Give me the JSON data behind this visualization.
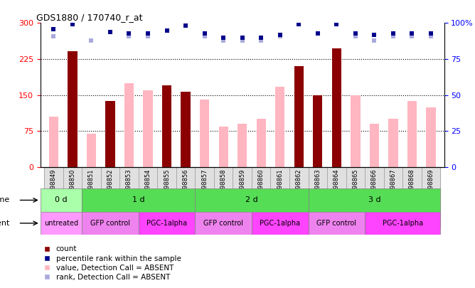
{
  "title": "GDS1880 / 170740_r_at",
  "samples": [
    "GSM98849",
    "GSM98850",
    "GSM98851",
    "GSM98852",
    "GSM98853",
    "GSM98854",
    "GSM98855",
    "GSM98856",
    "GSM98857",
    "GSM98858",
    "GSM98859",
    "GSM98860",
    "GSM98861",
    "GSM98862",
    "GSM98863",
    "GSM98864",
    "GSM98865",
    "GSM98866",
    "GSM98867",
    "GSM98868",
    "GSM98869"
  ],
  "count_values": [
    0,
    242,
    0,
    137,
    0,
    0,
    170,
    157,
    0,
    0,
    0,
    0,
    0,
    210,
    150,
    248,
    0,
    0,
    0,
    0,
    0
  ],
  "value_absent": [
    105,
    0,
    70,
    0,
    175,
    160,
    0,
    0,
    140,
    85,
    90,
    100,
    168,
    0,
    0,
    0,
    150,
    90,
    100,
    137,
    125
  ],
  "percentile_rank": [
    96,
    99,
    0,
    94,
    93,
    93,
    95,
    98,
    93,
    90,
    90,
    90,
    92,
    99,
    93,
    99,
    93,
    92,
    93,
    93,
    93
  ],
  "rank_absent": [
    91,
    0,
    88,
    0,
    91,
    91,
    0,
    0,
    91,
    88,
    88,
    88,
    91,
    0,
    0,
    0,
    91,
    88,
    91,
    91,
    91
  ],
  "time_group_defs": [
    {
      "label": "0 d",
      "start": 0,
      "end": 2,
      "color": "#AAFFAA"
    },
    {
      "label": "1 d",
      "start": 2,
      "end": 8,
      "color": "#55DD55"
    },
    {
      "label": "2 d",
      "start": 8,
      "end": 14,
      "color": "#55DD55"
    },
    {
      "label": "3 d",
      "start": 14,
      "end": 21,
      "color": "#55DD55"
    }
  ],
  "agent_group_defs": [
    {
      "label": "untreated",
      "start": 0,
      "end": 2,
      "color": "#FF99FF"
    },
    {
      "label": "GFP control",
      "start": 2,
      "end": 5,
      "color": "#EE82EE"
    },
    {
      "label": "PGC-1alpha",
      "start": 5,
      "end": 8,
      "color": "#FF44FF"
    },
    {
      "label": "GFP control",
      "start": 8,
      "end": 11,
      "color": "#EE82EE"
    },
    {
      "label": "PGC-1alpha",
      "start": 11,
      "end": 14,
      "color": "#FF44FF"
    },
    {
      "label": "GFP control",
      "start": 14,
      "end": 17,
      "color": "#EE82EE"
    },
    {
      "label": "PGC-1alpha",
      "start": 17,
      "end": 21,
      "color": "#FF44FF"
    }
  ],
  "ylim_left": [
    0,
    300
  ],
  "ylim_right": [
    0,
    100
  ],
  "yticks_left": [
    0,
    75,
    150,
    225,
    300
  ],
  "yticks_right": [
    0,
    25,
    50,
    75,
    100
  ],
  "ytick_right_labels": [
    "0",
    "25",
    "50",
    "75",
    "100%"
  ],
  "count_color": "#8B0000",
  "value_absent_color": "#FFB6C1",
  "rank_color_dark": "#00008B",
  "rank_absent_color": "#AAAADD",
  "sample_bg_color": "#E0E0E0",
  "bg_color": "#FFFFFF",
  "bar_width": 0.5,
  "marker_size": 4,
  "grid_dotted_vals": [
    75,
    150,
    225
  ],
  "legend_items": [
    {
      "color": "#8B0000",
      "label": "count"
    },
    {
      "color": "#00008B",
      "label": "percentile rank within the sample"
    },
    {
      "color": "#FFB6C1",
      "label": "value, Detection Call = ABSENT"
    },
    {
      "color": "#AAAADD",
      "label": "rank, Detection Call = ABSENT"
    }
  ]
}
